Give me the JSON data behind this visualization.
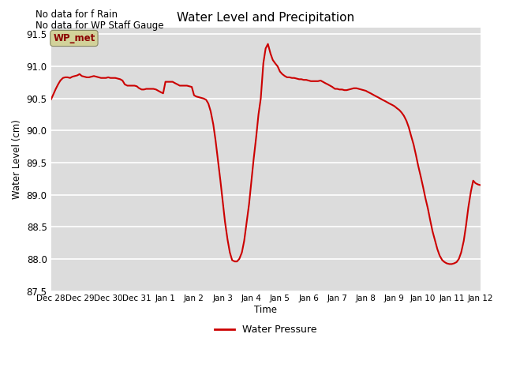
{
  "title": "Water Level and Precipitation",
  "ylabel": "Water Level (cm)",
  "xlabel": "Time",
  "text_line1": "No data for f Rain",
  "text_line2": "No data for WP Staff Gauge",
  "legend_label": "Water Pressure",
  "legend_label_wp_met": "WP_met",
  "ylim": [
    87.5,
    91.6
  ],
  "bg_color": "#dcdcdc",
  "line_color": "#cc0000",
  "wp_met_box_facecolor": "#d2d29a",
  "wp_met_text_color": "#8b0000",
  "xtick_labels": [
    "Dec 28",
    "Dec 29",
    "Dec 30",
    "Dec 31",
    "Jan 1",
    "Jan 2",
    "Jan 3",
    "Jan 4",
    "Jan 5",
    "Jan 6",
    "Jan 7",
    "Jan 8",
    "Jan 9",
    "Jan 10",
    "Jan 11",
    "Jan 12"
  ],
  "ytick_values": [
    87.5,
    88.0,
    88.5,
    89.0,
    89.5,
    90.0,
    90.5,
    91.0,
    91.5
  ],
  "x_numeric": [
    0.0,
    0.08,
    0.17,
    0.25,
    0.33,
    0.42,
    0.5,
    0.58,
    0.67,
    0.75,
    0.83,
    0.92,
    1.0,
    1.08,
    1.17,
    1.25,
    1.33,
    1.42,
    1.5,
    1.58,
    1.67,
    1.75,
    1.83,
    1.92,
    2.0,
    2.08,
    2.17,
    2.25,
    2.33,
    2.42,
    2.5,
    2.58,
    2.67,
    2.75,
    2.83,
    2.92,
    3.0,
    3.08,
    3.17,
    3.25,
    3.33,
    3.42,
    3.5,
    3.58,
    3.67,
    3.75,
    3.83,
    3.92,
    4.0,
    4.08,
    4.17,
    4.25,
    4.33,
    4.42,
    4.5,
    4.58,
    4.67,
    4.75,
    4.83,
    4.92,
    5.0,
    5.08,
    5.17,
    5.25,
    5.33,
    5.42,
    5.5,
    5.58,
    5.67,
    5.75,
    5.83,
    5.92,
    6.0,
    6.08,
    6.17,
    6.25,
    6.33,
    6.42,
    6.5,
    6.58,
    6.67,
    6.75,
    6.83,
    6.92,
    7.0,
    7.08,
    7.17,
    7.25,
    7.33,
    7.42,
    7.5,
    7.58,
    7.67,
    7.75,
    7.83,
    7.92,
    8.0,
    8.08,
    8.17,
    8.25,
    8.33,
    8.42,
    8.5,
    8.58,
    8.67,
    8.75,
    8.83,
    8.92,
    9.0,
    9.08,
    9.17,
    9.25,
    9.33,
    9.42,
    9.5,
    9.58,
    9.67,
    9.75,
    9.83,
    9.92,
    10.0,
    10.08,
    10.17,
    10.25,
    10.33,
    10.42,
    10.5,
    10.58,
    10.67,
    10.75,
    10.83,
    10.92,
    11.0,
    11.08,
    11.17,
    11.25,
    11.33,
    11.42,
    11.5,
    11.58,
    11.67,
    11.75,
    11.83,
    11.92,
    12.0,
    12.08,
    12.17,
    12.25,
    12.33,
    12.42,
    12.5,
    12.58,
    12.67,
    12.75,
    12.83,
    12.92,
    13.0,
    13.08,
    13.17,
    13.25,
    13.33,
    13.42,
    13.5,
    13.58,
    13.67,
    13.75,
    13.83,
    13.92,
    14.0,
    14.08,
    14.17,
    14.25,
    14.33,
    14.42,
    14.5,
    14.58,
    14.67,
    14.75,
    14.83,
    14.92,
    15.0
  ],
  "y_numeric": [
    90.48,
    90.56,
    90.65,
    90.72,
    90.78,
    90.82,
    90.83,
    90.83,
    90.82,
    90.84,
    90.85,
    90.86,
    90.88,
    90.85,
    90.84,
    90.83,
    90.83,
    90.84,
    90.85,
    90.84,
    90.83,
    90.82,
    90.82,
    90.82,
    90.83,
    90.82,
    90.82,
    90.82,
    90.81,
    90.8,
    90.78,
    90.72,
    90.7,
    90.7,
    90.7,
    90.7,
    90.69,
    90.66,
    90.64,
    90.64,
    90.65,
    90.65,
    90.65,
    90.65,
    90.64,
    90.62,
    90.6,
    90.58,
    90.76,
    90.76,
    90.76,
    90.76,
    90.74,
    90.72,
    90.7,
    90.7,
    90.7,
    90.7,
    90.69,
    90.68,
    90.55,
    90.53,
    90.52,
    90.51,
    90.5,
    90.48,
    90.42,
    90.3,
    90.1,
    89.85,
    89.55,
    89.22,
    88.9,
    88.58,
    88.3,
    88.1,
    87.98,
    87.96,
    87.96,
    88.0,
    88.1,
    88.28,
    88.55,
    88.85,
    89.2,
    89.55,
    89.9,
    90.25,
    90.5,
    91.05,
    91.28,
    91.35,
    91.2,
    91.1,
    91.05,
    91.0,
    90.92,
    90.88,
    90.85,
    90.83,
    90.83,
    90.82,
    90.82,
    90.81,
    90.8,
    90.8,
    90.79,
    90.79,
    90.78,
    90.77,
    90.77,
    90.77,
    90.77,
    90.78,
    90.76,
    90.74,
    90.72,
    90.7,
    90.68,
    90.65,
    90.65,
    90.64,
    90.64,
    90.63,
    90.63,
    90.64,
    90.65,
    90.66,
    90.66,
    90.65,
    90.64,
    90.63,
    90.62,
    90.6,
    90.58,
    90.56,
    90.54,
    90.52,
    90.5,
    90.48,
    90.46,
    90.44,
    90.42,
    90.4,
    90.38,
    90.35,
    90.32,
    90.28,
    90.23,
    90.15,
    90.05,
    89.92,
    89.78,
    89.62,
    89.45,
    89.28,
    89.12,
    88.95,
    88.78,
    88.6,
    88.43,
    88.28,
    88.15,
    88.05,
    87.98,
    87.95,
    87.93,
    87.92,
    87.92,
    87.93,
    87.95,
    88.0,
    88.1,
    88.28,
    88.52,
    88.8,
    89.05,
    89.22,
    89.18,
    89.16,
    89.15
  ]
}
